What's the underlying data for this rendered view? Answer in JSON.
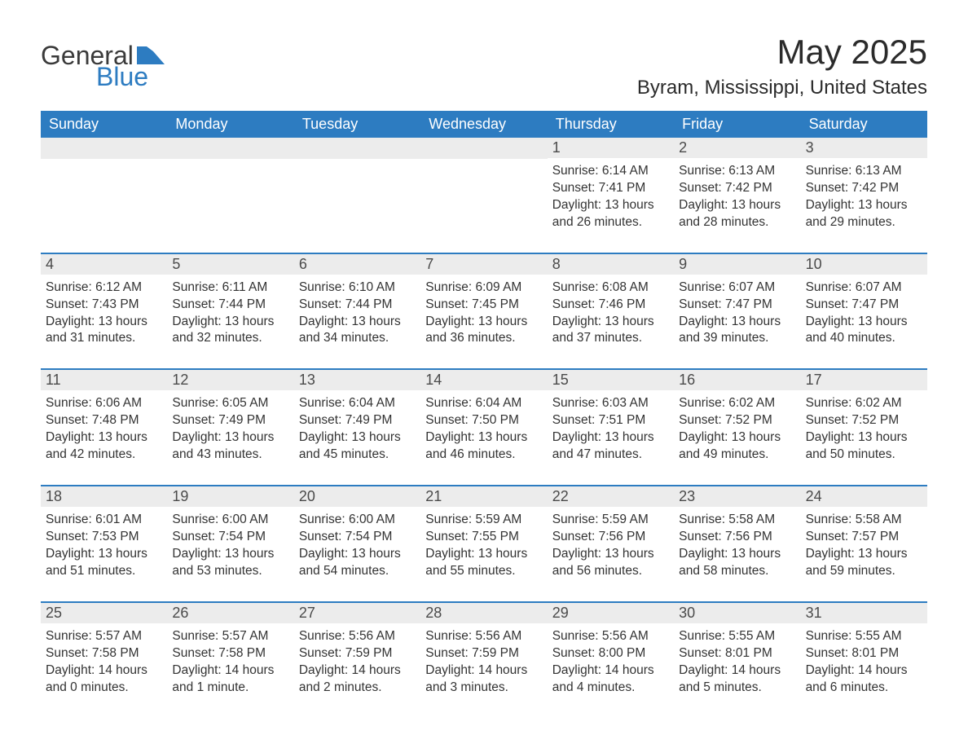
{
  "brand": {
    "word1": "General",
    "word2": "Blue",
    "accent_color": "#2d7cc1",
    "text_color": "#3a3a3a"
  },
  "title": "May 2025",
  "location": "Byram, Mississippi, United States",
  "styling": {
    "background_color": "#ffffff",
    "header_bg": "#2d7cc1",
    "header_text_color": "#ffffff",
    "daynum_bg": "#ececec",
    "daynum_color": "#4a4a4a",
    "body_color": "#333333",
    "row_divider_color": "#2d7cc1",
    "title_fontsize": 42,
    "location_fontsize": 24,
    "weekday_fontsize": 18,
    "daynum_fontsize": 18,
    "body_fontsize": 15.5
  },
  "weekdays": [
    "Sunday",
    "Monday",
    "Tuesday",
    "Wednesday",
    "Thursday",
    "Friday",
    "Saturday"
  ],
  "weeks": [
    [
      null,
      null,
      null,
      null,
      {
        "n": "1",
        "sunrise": "Sunrise: 6:14 AM",
        "sunset": "Sunset: 7:41 PM",
        "d1": "Daylight: 13 hours",
        "d2": "and 26 minutes."
      },
      {
        "n": "2",
        "sunrise": "Sunrise: 6:13 AM",
        "sunset": "Sunset: 7:42 PM",
        "d1": "Daylight: 13 hours",
        "d2": "and 28 minutes."
      },
      {
        "n": "3",
        "sunrise": "Sunrise: 6:13 AM",
        "sunset": "Sunset: 7:42 PM",
        "d1": "Daylight: 13 hours",
        "d2": "and 29 minutes."
      }
    ],
    [
      {
        "n": "4",
        "sunrise": "Sunrise: 6:12 AM",
        "sunset": "Sunset: 7:43 PM",
        "d1": "Daylight: 13 hours",
        "d2": "and 31 minutes."
      },
      {
        "n": "5",
        "sunrise": "Sunrise: 6:11 AM",
        "sunset": "Sunset: 7:44 PM",
        "d1": "Daylight: 13 hours",
        "d2": "and 32 minutes."
      },
      {
        "n": "6",
        "sunrise": "Sunrise: 6:10 AM",
        "sunset": "Sunset: 7:44 PM",
        "d1": "Daylight: 13 hours",
        "d2": "and 34 minutes."
      },
      {
        "n": "7",
        "sunrise": "Sunrise: 6:09 AM",
        "sunset": "Sunset: 7:45 PM",
        "d1": "Daylight: 13 hours",
        "d2": "and 36 minutes."
      },
      {
        "n": "8",
        "sunrise": "Sunrise: 6:08 AM",
        "sunset": "Sunset: 7:46 PM",
        "d1": "Daylight: 13 hours",
        "d2": "and 37 minutes."
      },
      {
        "n": "9",
        "sunrise": "Sunrise: 6:07 AM",
        "sunset": "Sunset: 7:47 PM",
        "d1": "Daylight: 13 hours",
        "d2": "and 39 minutes."
      },
      {
        "n": "10",
        "sunrise": "Sunrise: 6:07 AM",
        "sunset": "Sunset: 7:47 PM",
        "d1": "Daylight: 13 hours",
        "d2": "and 40 minutes."
      }
    ],
    [
      {
        "n": "11",
        "sunrise": "Sunrise: 6:06 AM",
        "sunset": "Sunset: 7:48 PM",
        "d1": "Daylight: 13 hours",
        "d2": "and 42 minutes."
      },
      {
        "n": "12",
        "sunrise": "Sunrise: 6:05 AM",
        "sunset": "Sunset: 7:49 PM",
        "d1": "Daylight: 13 hours",
        "d2": "and 43 minutes."
      },
      {
        "n": "13",
        "sunrise": "Sunrise: 6:04 AM",
        "sunset": "Sunset: 7:49 PM",
        "d1": "Daylight: 13 hours",
        "d2": "and 45 minutes."
      },
      {
        "n": "14",
        "sunrise": "Sunrise: 6:04 AM",
        "sunset": "Sunset: 7:50 PM",
        "d1": "Daylight: 13 hours",
        "d2": "and 46 minutes."
      },
      {
        "n": "15",
        "sunrise": "Sunrise: 6:03 AM",
        "sunset": "Sunset: 7:51 PM",
        "d1": "Daylight: 13 hours",
        "d2": "and 47 minutes."
      },
      {
        "n": "16",
        "sunrise": "Sunrise: 6:02 AM",
        "sunset": "Sunset: 7:52 PM",
        "d1": "Daylight: 13 hours",
        "d2": "and 49 minutes."
      },
      {
        "n": "17",
        "sunrise": "Sunrise: 6:02 AM",
        "sunset": "Sunset: 7:52 PM",
        "d1": "Daylight: 13 hours",
        "d2": "and 50 minutes."
      }
    ],
    [
      {
        "n": "18",
        "sunrise": "Sunrise: 6:01 AM",
        "sunset": "Sunset: 7:53 PM",
        "d1": "Daylight: 13 hours",
        "d2": "and 51 minutes."
      },
      {
        "n": "19",
        "sunrise": "Sunrise: 6:00 AM",
        "sunset": "Sunset: 7:54 PM",
        "d1": "Daylight: 13 hours",
        "d2": "and 53 minutes."
      },
      {
        "n": "20",
        "sunrise": "Sunrise: 6:00 AM",
        "sunset": "Sunset: 7:54 PM",
        "d1": "Daylight: 13 hours",
        "d2": "and 54 minutes."
      },
      {
        "n": "21",
        "sunrise": "Sunrise: 5:59 AM",
        "sunset": "Sunset: 7:55 PM",
        "d1": "Daylight: 13 hours",
        "d2": "and 55 minutes."
      },
      {
        "n": "22",
        "sunrise": "Sunrise: 5:59 AM",
        "sunset": "Sunset: 7:56 PM",
        "d1": "Daylight: 13 hours",
        "d2": "and 56 minutes."
      },
      {
        "n": "23",
        "sunrise": "Sunrise: 5:58 AM",
        "sunset": "Sunset: 7:56 PM",
        "d1": "Daylight: 13 hours",
        "d2": "and 58 minutes."
      },
      {
        "n": "24",
        "sunrise": "Sunrise: 5:58 AM",
        "sunset": "Sunset: 7:57 PM",
        "d1": "Daylight: 13 hours",
        "d2": "and 59 minutes."
      }
    ],
    [
      {
        "n": "25",
        "sunrise": "Sunrise: 5:57 AM",
        "sunset": "Sunset: 7:58 PM",
        "d1": "Daylight: 14 hours",
        "d2": "and 0 minutes."
      },
      {
        "n": "26",
        "sunrise": "Sunrise: 5:57 AM",
        "sunset": "Sunset: 7:58 PM",
        "d1": "Daylight: 14 hours",
        "d2": "and 1 minute."
      },
      {
        "n": "27",
        "sunrise": "Sunrise: 5:56 AM",
        "sunset": "Sunset: 7:59 PM",
        "d1": "Daylight: 14 hours",
        "d2": "and 2 minutes."
      },
      {
        "n": "28",
        "sunrise": "Sunrise: 5:56 AM",
        "sunset": "Sunset: 7:59 PM",
        "d1": "Daylight: 14 hours",
        "d2": "and 3 minutes."
      },
      {
        "n": "29",
        "sunrise": "Sunrise: 5:56 AM",
        "sunset": "Sunset: 8:00 PM",
        "d1": "Daylight: 14 hours",
        "d2": "and 4 minutes."
      },
      {
        "n": "30",
        "sunrise": "Sunrise: 5:55 AM",
        "sunset": "Sunset: 8:01 PM",
        "d1": "Daylight: 14 hours",
        "d2": "and 5 minutes."
      },
      {
        "n": "31",
        "sunrise": "Sunrise: 5:55 AM",
        "sunset": "Sunset: 8:01 PM",
        "d1": "Daylight: 14 hours",
        "d2": "and 6 minutes."
      }
    ]
  ]
}
